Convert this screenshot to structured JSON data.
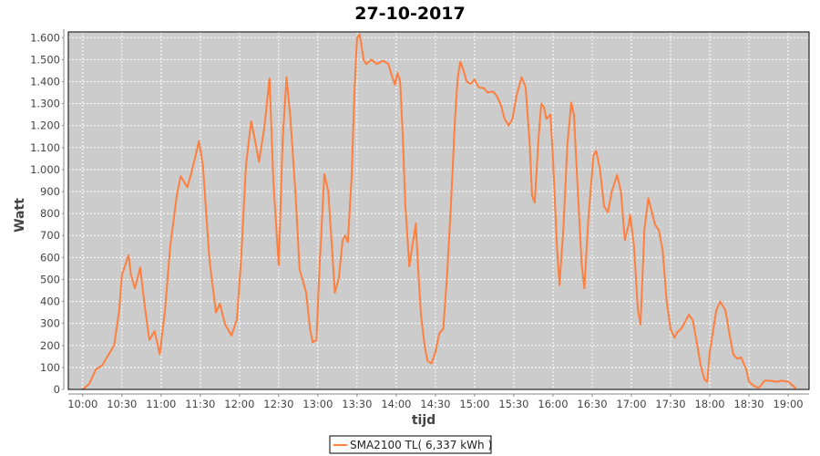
{
  "chart_data": {
    "type": "line",
    "title": "27-10-2017",
    "xlabel": "tijd",
    "ylabel": "Watt",
    "xlim": [
      "09:49",
      "19:16"
    ],
    "ylim": [
      0,
      1626
    ],
    "grid": true,
    "legend_placement": "bottom",
    "colors": {
      "series": "#FF7F3F",
      "plot_background": "#CCCCCC",
      "grid": "#FFFFFF"
    },
    "xticks": [
      "10:00",
      "10:30",
      "11:00",
      "11:30",
      "12:00",
      "12:30",
      "13:00",
      "13:30",
      "14:00",
      "14:30",
      "15:00",
      "15:30",
      "16:00",
      "16:30",
      "17:00",
      "17:30",
      "18:00",
      "18:30",
      "19:00"
    ],
    "yticks": [
      0,
      100,
      200,
      300,
      400,
      500,
      600,
      700,
      800,
      900,
      1000,
      1100,
      1200,
      1300,
      1400,
      1500,
      1600
    ],
    "ytick_labels": [
      "0",
      "100",
      "200",
      "300",
      "400",
      "500",
      "600",
      "700",
      "800",
      "900",
      "1.000",
      "1.100",
      "1.200",
      "1.300",
      "1.400",
      "1.500",
      "1.600"
    ],
    "series": [
      {
        "name": "SMA2100 TL( 6,337 kWh )",
        "x": [
          "10:00",
          "10:05",
          "10:10",
          "10:15",
          "10:19",
          "10:24",
          "10:28",
          "10:30",
          "10:35",
          "10:37",
          "10:40",
          "10:44",
          "10:47",
          "10:51",
          "10:55",
          "10:59",
          "11:03",
          "11:07",
          "11:12",
          "11:15",
          "11:20",
          "11:23",
          "11:29",
          "11:32",
          "11:37",
          "11:42",
          "11:45",
          "11:49",
          "11:54",
          "11:58",
          "12:01",
          "12:05",
          "12:09",
          "12:12",
          "12:15",
          "12:19",
          "12:23",
          "12:26",
          "12:30",
          "12:33",
          "12:36",
          "12:39",
          "12:43",
          "12:46",
          "12:49",
          "12:51",
          "12:54",
          "12:56",
          "12:59",
          "13:01",
          "13:05",
          "13:08",
          "13:11",
          "13:13",
          "13:16",
          "13:19",
          "13:21",
          "13:23",
          "13:26",
          "13:28",
          "13:30",
          "13:32",
          "13:35",
          "13:37",
          "13:41",
          "13:45",
          "13:50",
          "13:54",
          "13:57",
          "13:59",
          "14:01",
          "14:03",
          "14:05",
          "14:07",
          "14:09",
          "14:10",
          "14:15",
          "14:17",
          "14:19",
          "14:22",
          "14:24",
          "14:27",
          "14:30",
          "14:33",
          "14:36",
          "14:39",
          "14:42",
          "14:45",
          "14:47",
          "14:49",
          "14:51",
          "14:54",
          "14:57",
          "15:00",
          "15:03",
          "15:07",
          "15:10",
          "15:14",
          "15:17",
          "15:20",
          "15:23",
          "15:26",
          "15:29",
          "15:32",
          "15:36",
          "15:39",
          "15:42",
          "15:44",
          "15:46",
          "15:49",
          "15:51",
          "15:53",
          "15:55",
          "15:58",
          "16:00",
          "16:03",
          "16:05",
          "16:08",
          "16:11",
          "16:14",
          "16:16",
          "16:19",
          "16:22",
          "16:24",
          "16:27",
          "16:31",
          "16:33",
          "16:36",
          "16:39",
          "16:42",
          "16:45",
          "16:49",
          "16:52",
          "16:55",
          "16:58",
          "16:59",
          "17:02",
          "17:05",
          "17:07",
          "17:10",
          "17:13",
          "17:16",
          "17:18",
          "17:21",
          "17:24",
          "17:27",
          "17:30",
          "17:33",
          "17:35",
          "17:38",
          "17:40",
          "17:44",
          "17:47",
          "17:50",
          "17:53",
          "17:56",
          "17:58",
          "18:00",
          "18:05",
          "18:08",
          "18:12",
          "18:15",
          "18:18",
          "18:21",
          "18:24",
          "18:28",
          "18:30",
          "18:33",
          "18:36",
          "18:38",
          "18:42",
          "18:46",
          "18:51",
          "18:55",
          "19:00",
          "19:03",
          "19:06"
        ],
        "values": [
          0,
          25,
          90,
          110,
          150,
          200,
          360,
          520,
          610,
          520,
          460,
          555,
          400,
          225,
          265,
          160,
          360,
          650,
          880,
          970,
          920,
          980,
          1130,
          1020,
          590,
          350,
          390,
          295,
          245,
          320,
          570,
          1020,
          1220,
          1130,
          1035,
          1190,
          1415,
          940,
          565,
          1130,
          1420,
          1230,
          880,
          545,
          485,
          440,
          275,
          215,
          225,
          525,
          980,
          900,
          630,
          440,
          505,
          680,
          700,
          670,
          980,
          1355,
          1600,
          1615,
          1500,
          1480,
          1500,
          1480,
          1495,
          1480,
          1420,
          1385,
          1440,
          1400,
          1150,
          835,
          655,
          560,
          755,
          525,
          335,
          190,
          130,
          118,
          170,
          255,
          275,
          525,
          855,
          1230,
          1415,
          1490,
          1460,
          1400,
          1390,
          1410,
          1375,
          1370,
          1350,
          1355,
          1335,
          1295,
          1230,
          1200,
          1230,
          1335,
          1420,
          1375,
          1130,
          880,
          850,
          1150,
          1300,
          1285,
          1230,
          1250,
          1045,
          650,
          475,
          735,
          1110,
          1305,
          1250,
          900,
          565,
          460,
          775,
          1065,
          1085,
          1000,
          835,
          805,
          900,
          975,
          900,
          680,
          750,
          795,
          650,
          360,
          295,
          730,
          870,
          800,
          750,
          725,
          630,
          400,
          275,
          235,
          260,
          275,
          295,
          340,
          315,
          215,
          110,
          45,
          35,
          170,
          360,
          400,
          360,
          255,
          160,
          140,
          145,
          90,
          35,
          20,
          10,
          10,
          40,
          40,
          35,
          40,
          35,
          20,
          5
        ]
      }
    ]
  }
}
